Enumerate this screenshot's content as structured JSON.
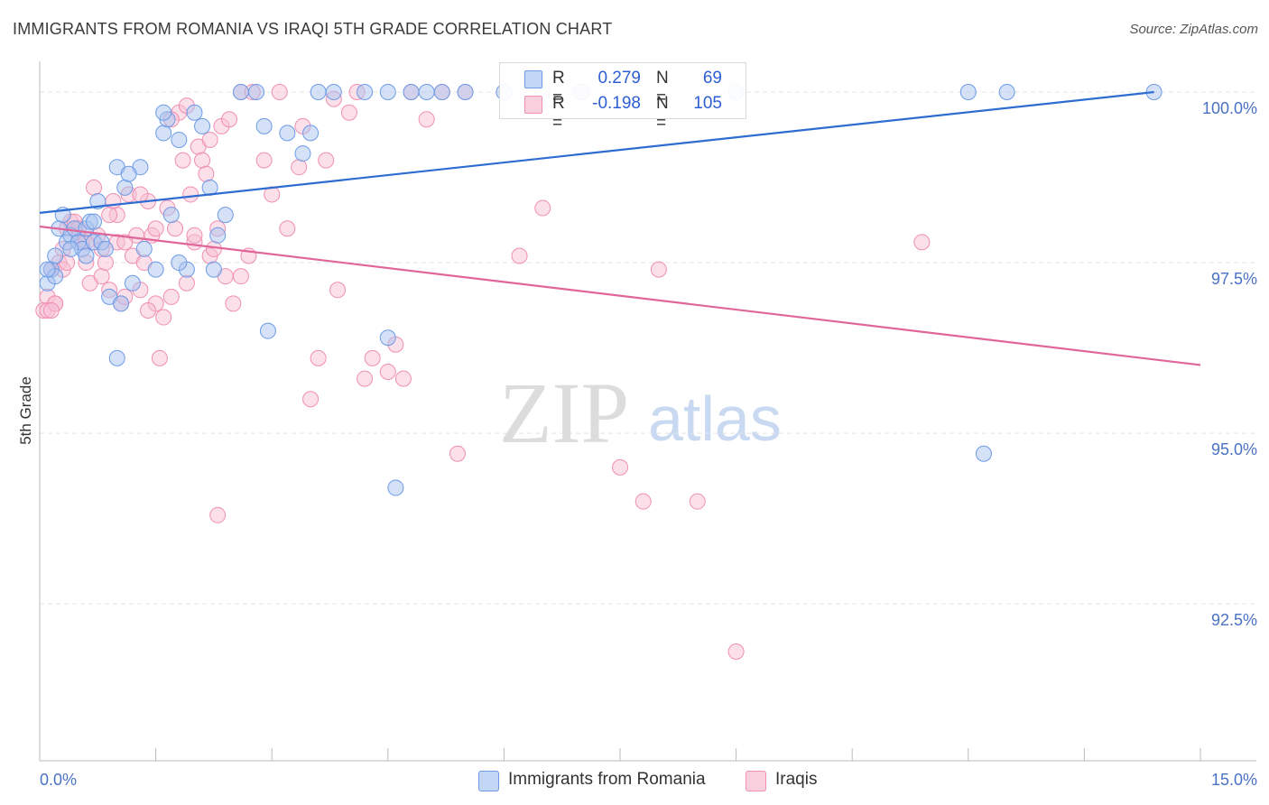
{
  "header": {
    "title": "IMMIGRANTS FROM ROMANIA VS IRAQI 5TH GRADE CORRELATION CHART",
    "source": "Source: ZipAtlas.com"
  },
  "watermark": {
    "zip": "ZIP",
    "atlas": "atlas"
  },
  "legend": {
    "rows": [
      {
        "r_label": "R =",
        "r_value": "0.279",
        "n_label": "N =",
        "n_value": "69",
        "color": "#6c9be6"
      },
      {
        "r_label": "R =",
        "r_value": "-0.198",
        "n_label": "N =",
        "n_value": "105",
        "color": "#f08fb1"
      }
    ]
  },
  "bottom_legend": {
    "items": [
      {
        "label": "Immigrants from Romania",
        "color": "#6c9be6"
      },
      {
        "label": "Iraqis",
        "color": "#f08fb1"
      }
    ]
  },
  "colors": {
    "blue_fill": "#a9c4f0",
    "blue_stroke": "#6c9be6",
    "blue_line": "#2d6cd1",
    "pink_fill": "#f7bfd3",
    "pink_stroke": "#f08fb1",
    "pink_line": "#e0669a",
    "grid": "#e3e3e3",
    "axis_text": "#4a72c4"
  },
  "chart_data": {
    "type": "scatter",
    "title": "IMMIGRANTS FROM ROMANIA VS IRAQI 5TH GRADE CORRELATION CHART",
    "xlabel": "",
    "ylabel": "5th Grade",
    "xlim": [
      0.0,
      15.0
    ],
    "ylim": [
      90.2,
      100.45
    ],
    "x_tick_labels": [
      "0.0%",
      "15.0%"
    ],
    "y_ticks": [
      {
        "value": 100.0,
        "label": "100.0%"
      },
      {
        "value": 97.5,
        "label": "97.5%"
      },
      {
        "value": 95.0,
        "label": "95.0%"
      },
      {
        "value": 92.5,
        "label": "92.5%"
      }
    ],
    "series": [
      {
        "name": "Immigrants from Romania",
        "r": 0.279,
        "n": 69,
        "trend": {
          "x": [
            0.0,
            14.4
          ],
          "y": [
            98.23,
            100.0
          ]
        },
        "points": [
          [
            0.1,
            97.2
          ],
          [
            0.15,
            97.4
          ],
          [
            0.2,
            97.6
          ],
          [
            0.25,
            98.0
          ],
          [
            0.3,
            98.2
          ],
          [
            0.35,
            97.8
          ],
          [
            0.4,
            97.9
          ],
          [
            0.45,
            98.0
          ],
          [
            0.5,
            97.8
          ],
          [
            0.55,
            97.7
          ],
          [
            0.6,
            98.0
          ],
          [
            0.65,
            98.1
          ],
          [
            0.7,
            97.8
          ],
          [
            0.75,
            98.4
          ],
          [
            0.8,
            97.8
          ],
          [
            0.85,
            97.7
          ],
          [
            0.9,
            97.0
          ],
          [
            1.0,
            96.1
          ],
          [
            1.05,
            96.9
          ],
          [
            1.1,
            98.6
          ],
          [
            1.2,
            97.2
          ],
          [
            1.35,
            97.7
          ],
          [
            1.5,
            97.4
          ],
          [
            1.6,
            99.4
          ],
          [
            1.7,
            98.2
          ],
          [
            1.8,
            99.3
          ],
          [
            1.9,
            97.4
          ],
          [
            2.0,
            99.7
          ],
          [
            2.1,
            99.5
          ],
          [
            2.2,
            98.6
          ],
          [
            2.3,
            97.9
          ],
          [
            2.4,
            98.2
          ],
          [
            2.6,
            100.0
          ],
          [
            2.8,
            100.0
          ],
          [
            2.9,
            99.5
          ],
          [
            3.2,
            99.4
          ],
          [
            3.4,
            99.1
          ],
          [
            3.5,
            99.4
          ],
          [
            3.6,
            100.0
          ],
          [
            3.8,
            100.0
          ],
          [
            4.2,
            100.0
          ],
          [
            4.5,
            100.0
          ],
          [
            4.8,
            100.0
          ],
          [
            5.0,
            100.0
          ],
          [
            5.2,
            100.0
          ],
          [
            5.5,
            100.0
          ],
          [
            6.0,
            100.0
          ],
          [
            6.5,
            100.0
          ],
          [
            7.0,
            100.0
          ],
          [
            9.0,
            100.0
          ],
          [
            12.0,
            100.0
          ],
          [
            12.5,
            100.0
          ],
          [
            14.4,
            100.0
          ],
          [
            12.2,
            94.7
          ],
          [
            4.6,
            94.2
          ],
          [
            4.5,
            96.4
          ],
          [
            2.95,
            96.5
          ],
          [
            1.65,
            99.6
          ],
          [
            1.3,
            98.9
          ],
          [
            1.0,
            98.9
          ],
          [
            1.15,
            98.8
          ],
          [
            1.8,
            97.5
          ],
          [
            2.25,
            97.4
          ],
          [
            0.2,
            97.3
          ],
          [
            0.4,
            97.7
          ],
          [
            0.6,
            97.6
          ],
          [
            0.1,
            97.4
          ],
          [
            0.7,
            98.1
          ],
          [
            1.6,
            99.7
          ]
        ]
      },
      {
        "name": "Iraqis",
        "r": -0.198,
        "n": 105,
        "trend": {
          "x": [
            0.0,
            15.0
          ],
          "y": [
            98.03,
            96.0
          ]
        },
        "points": [
          [
            0.05,
            96.8
          ],
          [
            0.1,
            97.0
          ],
          [
            0.15,
            97.4
          ],
          [
            0.2,
            96.9
          ],
          [
            0.25,
            97.5
          ],
          [
            0.3,
            97.7
          ],
          [
            0.35,
            98.0
          ],
          [
            0.4,
            98.1
          ],
          [
            0.45,
            98.1
          ],
          [
            0.5,
            97.9
          ],
          [
            0.55,
            97.8
          ],
          [
            0.6,
            97.5
          ],
          [
            0.65,
            97.2
          ],
          [
            0.7,
            98.6
          ],
          [
            0.75,
            97.9
          ],
          [
            0.8,
            97.3
          ],
          [
            0.85,
            97.5
          ],
          [
            0.9,
            97.1
          ],
          [
            0.95,
            98.4
          ],
          [
            1.0,
            97.8
          ],
          [
            1.05,
            96.9
          ],
          [
            1.1,
            97.0
          ],
          [
            1.15,
            98.5
          ],
          [
            1.2,
            97.6
          ],
          [
            1.25,
            97.9
          ],
          [
            1.3,
            97.1
          ],
          [
            1.35,
            97.5
          ],
          [
            1.4,
            98.4
          ],
          [
            1.45,
            97.9
          ],
          [
            1.5,
            96.9
          ],
          [
            1.55,
            96.1
          ],
          [
            1.6,
            96.7
          ],
          [
            1.65,
            98.3
          ],
          [
            1.7,
            97.0
          ],
          [
            1.75,
            98.0
          ],
          [
            1.8,
            99.7
          ],
          [
            1.85,
            99.0
          ],
          [
            1.9,
            97.2
          ],
          [
            1.95,
            98.5
          ],
          [
            2.0,
            97.8
          ],
          [
            2.05,
            99.2
          ],
          [
            2.1,
            99.0
          ],
          [
            2.15,
            98.8
          ],
          [
            2.2,
            97.6
          ],
          [
            2.25,
            97.7
          ],
          [
            2.3,
            98.0
          ],
          [
            2.35,
            99.5
          ],
          [
            2.4,
            97.3
          ],
          [
            2.5,
            96.9
          ],
          [
            2.6,
            100.0
          ],
          [
            2.75,
            100.0
          ],
          [
            2.9,
            99.0
          ],
          [
            3.0,
            98.5
          ],
          [
            3.2,
            98.0
          ],
          [
            3.35,
            98.9
          ],
          [
            3.5,
            95.5
          ],
          [
            3.6,
            96.1
          ],
          [
            3.7,
            99.0
          ],
          [
            3.85,
            97.1
          ],
          [
            4.0,
            99.7
          ],
          [
            4.2,
            95.8
          ],
          [
            4.3,
            96.1
          ],
          [
            4.5,
            95.9
          ],
          [
            4.6,
            96.3
          ],
          [
            4.7,
            95.8
          ],
          [
            5.0,
            99.6
          ],
          [
            5.2,
            100.0
          ],
          [
            5.5,
            100.0
          ],
          [
            6.2,
            97.6
          ],
          [
            6.5,
            98.3
          ],
          [
            7.0,
            100.0
          ],
          [
            7.5,
            94.5
          ],
          [
            7.8,
            94.0
          ],
          [
            8.0,
            97.4
          ],
          [
            8.5,
            94.0
          ],
          [
            9.0,
            91.8
          ],
          [
            11.4,
            97.8
          ],
          [
            0.1,
            96.8
          ],
          [
            0.2,
            96.9
          ],
          [
            0.3,
            97.4
          ],
          [
            0.5,
            98.0
          ],
          [
            0.6,
            97.8
          ],
          [
            0.8,
            97.7
          ],
          [
            1.0,
            98.2
          ],
          [
            1.3,
            98.5
          ],
          [
            1.5,
            98.0
          ],
          [
            1.7,
            99.6
          ],
          [
            1.9,
            99.8
          ],
          [
            2.0,
            97.9
          ],
          [
            2.2,
            99.3
          ],
          [
            2.45,
            99.6
          ],
          [
            2.7,
            97.6
          ],
          [
            3.1,
            100.0
          ],
          [
            3.4,
            99.5
          ],
          [
            3.8,
            99.9
          ],
          [
            4.8,
            100.0
          ],
          [
            5.4,
            94.7
          ],
          [
            2.3,
            93.8
          ],
          [
            0.15,
            96.8
          ],
          [
            0.35,
            97.5
          ],
          [
            0.9,
            98.2
          ],
          [
            1.1,
            97.8
          ],
          [
            1.4,
            96.8
          ],
          [
            2.6,
            97.3
          ],
          [
            4.1,
            100.0
          ]
        ]
      }
    ]
  }
}
